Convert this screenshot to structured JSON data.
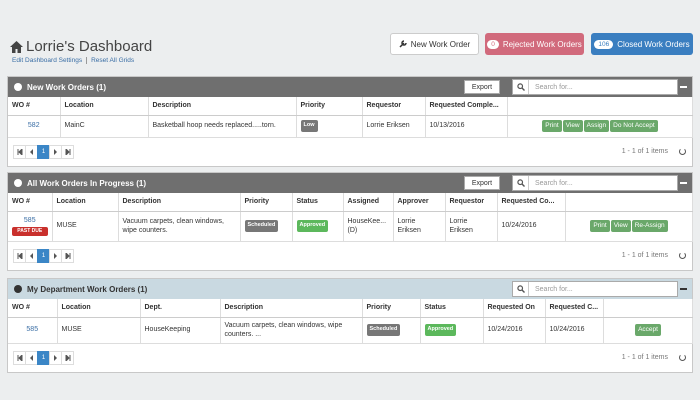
{
  "header": {
    "title": "Lorrie's Dashboard",
    "links": [
      "Edit Dashboard Settings",
      "Reset All Grids"
    ],
    "new_button": "New Work Order",
    "rejected": {
      "count": 0,
      "label": "Rejected Work Orders"
    },
    "closed": {
      "count": 106,
      "label": "Closed Work Orders"
    }
  },
  "panels": [
    {
      "title": "New Work Orders (1)",
      "export": "Export",
      "search": "Search for...",
      "columns": [
        "WO #",
        "Location",
        "Description",
        "Priority",
        "Requestor",
        "Requested Comple...",
        ""
      ],
      "rows": [
        {
          "cells": [
            "582",
            "MainC",
            "Basketball hoop needs replaced.....torn.",
            "Low",
            "Lorrie Eriksen",
            "10/13/2016"
          ],
          "actions": [
            "Print",
            "View",
            "Assign",
            "Do Not Accept"
          ]
        }
      ],
      "page": "1",
      "summary": "1 - 1 of 1 items"
    },
    {
      "title": "All Work Orders In Progress (1)",
      "export": "Export",
      "search": "Search for...",
      "columns": [
        "WO #",
        "Location",
        "Description",
        "Priority",
        "Status",
        "Assigned",
        "Approver",
        "Requestor",
        "Requested Co...",
        ""
      ],
      "rows": [
        {
          "cells": [
            "585",
            "MUSE",
            "Vacuum carpets, clean windows, wipe counters.",
            "Scheduled",
            "Approved",
            "HouseKee... (D)",
            "Lorrie Eriksen",
            "Lorrie Eriksen",
            "10/24/2016"
          ],
          "flag": "PAST DUE",
          "actions": [
            "Print",
            "View",
            "Re-Assign"
          ]
        }
      ],
      "page": "1",
      "summary": "1 - 1 of 1 items"
    },
    {
      "title": "My Department Work Orders (1)",
      "search": "Search for...",
      "columns": [
        "WO #",
        "Location",
        "Dept.",
        "Description",
        "Priority",
        "Status",
        "Requested On",
        "Requested C...",
        ""
      ],
      "rows": [
        {
          "cells": [
            "585",
            "MUSE",
            "HouseKeeping",
            "Vacuum carpets, clean windows, wipe counters. ...",
            "Scheduled",
            "Approved",
            "10/24/2016",
            "10/24/2016"
          ],
          "actions": [
            "Accept"
          ]
        }
      ],
      "page": "1",
      "summary": "1 - 1 of 1 items"
    }
  ]
}
